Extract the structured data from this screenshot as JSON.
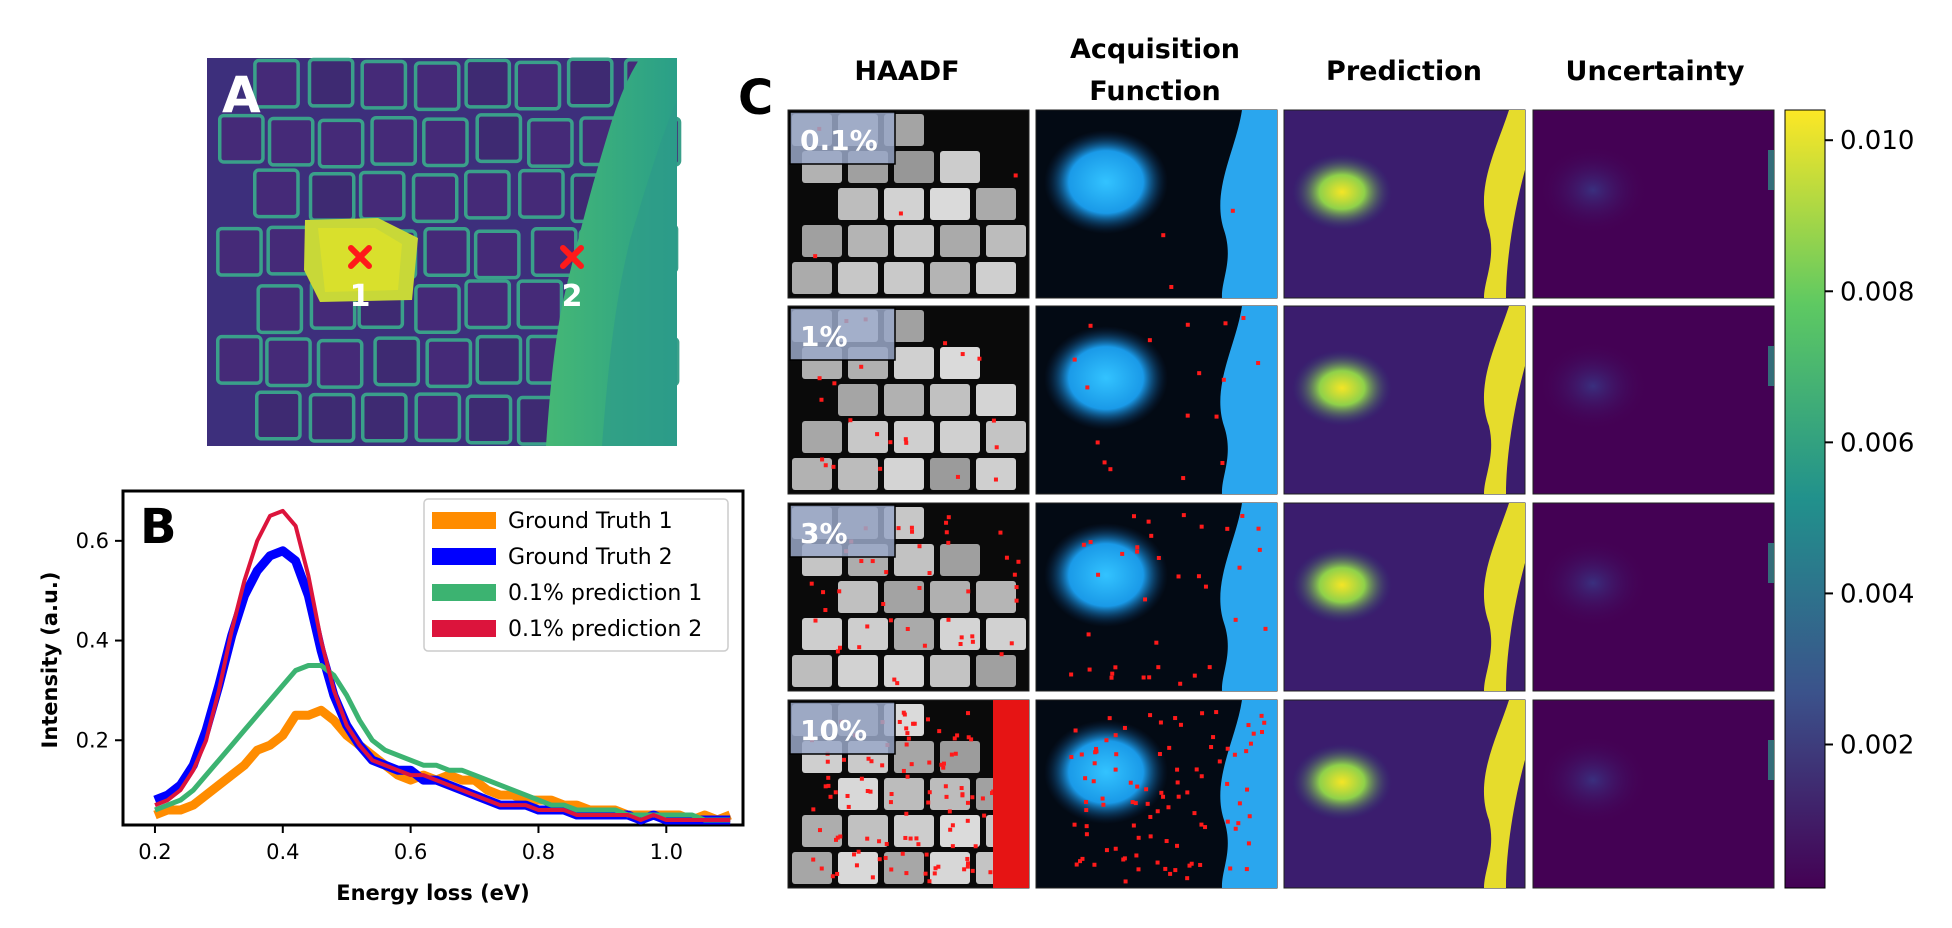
{
  "panels": {
    "a": {
      "letter": "A",
      "markers": [
        "1",
        "2"
      ]
    },
    "b": {
      "letter": "B"
    },
    "c": {
      "letter": "C"
    }
  },
  "grid": {
    "column_titles": [
      "HAADF",
      "Acquisition",
      "Function",
      "Prediction",
      "Uncertainty"
    ],
    "row_labels": [
      "0.1%",
      "1%",
      "3%",
      "10%"
    ]
  },
  "colorbar": {
    "ticks": [
      "0.010",
      "0.008",
      "0.006",
      "0.004",
      "0.002"
    ],
    "tick_values": [
      0.01,
      0.008,
      0.006,
      0.004,
      0.002
    ],
    "range": [
      0.0001,
      0.0104
    ],
    "colors": [
      "#440154",
      "#3b528b",
      "#21918c",
      "#5ec962",
      "#fde725"
    ]
  },
  "chart_data": {
    "type": "line",
    "xlabel": "Energy loss (eV)",
    "ylabel": "Intensity (a.u.)",
    "xlim": [
      0.15,
      1.12
    ],
    "ylim": [
      0.03,
      0.7
    ],
    "xticks": [
      0.2,
      0.4,
      0.6,
      0.8,
      1.0
    ],
    "xtick_labels": [
      "0.2",
      "0.4",
      "0.6",
      "0.8",
      "1.0"
    ],
    "yticks": [
      0.2,
      0.4,
      0.6
    ],
    "ytick_labels": [
      "0.2",
      "0.4",
      "0.6"
    ],
    "legend_position": "top-right",
    "grid": false,
    "series": [
      {
        "name": "Ground Truth 1",
        "color": "#ff8c00",
        "x": [
          0.2,
          0.22,
          0.24,
          0.26,
          0.28,
          0.3,
          0.32,
          0.34,
          0.36,
          0.38,
          0.4,
          0.42,
          0.44,
          0.46,
          0.48,
          0.5,
          0.52,
          0.54,
          0.56,
          0.58,
          0.6,
          0.62,
          0.64,
          0.66,
          0.68,
          0.7,
          0.72,
          0.74,
          0.76,
          0.78,
          0.8,
          0.82,
          0.84,
          0.86,
          0.88,
          0.9,
          0.92,
          0.94,
          0.96,
          0.98,
          1.0,
          1.02,
          1.04,
          1.06,
          1.08,
          1.1
        ],
        "y": [
          0.05,
          0.06,
          0.06,
          0.07,
          0.09,
          0.11,
          0.13,
          0.15,
          0.18,
          0.19,
          0.21,
          0.25,
          0.25,
          0.26,
          0.24,
          0.21,
          0.19,
          0.17,
          0.15,
          0.13,
          0.12,
          0.13,
          0.12,
          0.13,
          0.12,
          0.12,
          0.1,
          0.09,
          0.09,
          0.08,
          0.08,
          0.08,
          0.07,
          0.07,
          0.06,
          0.06,
          0.06,
          0.05,
          0.05,
          0.05,
          0.05,
          0.05,
          0.04,
          0.05,
          0.04,
          0.05
        ]
      },
      {
        "name": "Ground Truth 2",
        "color": "#0000ff",
        "x": [
          0.2,
          0.22,
          0.24,
          0.26,
          0.28,
          0.3,
          0.32,
          0.34,
          0.36,
          0.38,
          0.4,
          0.42,
          0.44,
          0.46,
          0.48,
          0.5,
          0.52,
          0.54,
          0.56,
          0.58,
          0.6,
          0.62,
          0.64,
          0.66,
          0.68,
          0.7,
          0.72,
          0.74,
          0.76,
          0.78,
          0.8,
          0.82,
          0.84,
          0.86,
          0.88,
          0.9,
          0.92,
          0.94,
          0.96,
          0.98,
          1.0,
          1.02,
          1.04,
          1.06,
          1.08,
          1.1
        ],
        "y": [
          0.08,
          0.09,
          0.11,
          0.15,
          0.22,
          0.31,
          0.41,
          0.49,
          0.54,
          0.57,
          0.58,
          0.56,
          0.49,
          0.38,
          0.29,
          0.23,
          0.19,
          0.16,
          0.15,
          0.14,
          0.14,
          0.12,
          0.12,
          0.11,
          0.1,
          0.09,
          0.08,
          0.07,
          0.07,
          0.07,
          0.06,
          0.06,
          0.06,
          0.05,
          0.05,
          0.05,
          0.05,
          0.05,
          0.04,
          0.05,
          0.04,
          0.04,
          0.04,
          0.04,
          0.04,
          0.04
        ]
      },
      {
        "name": "0.1% prediction 1",
        "color": "#3cb371",
        "x": [
          0.2,
          0.22,
          0.24,
          0.26,
          0.28,
          0.3,
          0.32,
          0.34,
          0.36,
          0.38,
          0.4,
          0.42,
          0.44,
          0.46,
          0.48,
          0.5,
          0.52,
          0.54,
          0.56,
          0.58,
          0.6,
          0.62,
          0.64,
          0.66,
          0.68,
          0.7,
          0.72,
          0.74,
          0.76,
          0.78,
          0.8,
          0.82,
          0.84,
          0.86,
          0.88,
          0.9,
          0.92,
          0.94,
          0.96,
          0.98,
          1.0,
          1.02,
          1.04,
          1.06,
          1.08,
          1.1
        ],
        "y": [
          0.06,
          0.07,
          0.08,
          0.1,
          0.13,
          0.16,
          0.19,
          0.22,
          0.25,
          0.28,
          0.31,
          0.34,
          0.35,
          0.35,
          0.33,
          0.29,
          0.24,
          0.2,
          0.18,
          0.17,
          0.16,
          0.15,
          0.15,
          0.14,
          0.14,
          0.13,
          0.12,
          0.11,
          0.1,
          0.09,
          0.08,
          0.07,
          0.07,
          0.06,
          0.06,
          0.06,
          0.06,
          0.05,
          0.05,
          0.05,
          0.05,
          0.05,
          0.05,
          0.04,
          0.04,
          0.04
        ]
      },
      {
        "name": "0.1% prediction 2",
        "color": "#dc143c",
        "x": [
          0.2,
          0.22,
          0.24,
          0.26,
          0.28,
          0.3,
          0.32,
          0.34,
          0.36,
          0.38,
          0.4,
          0.42,
          0.44,
          0.46,
          0.48,
          0.5,
          0.52,
          0.54,
          0.56,
          0.58,
          0.6,
          0.62,
          0.64,
          0.66,
          0.68,
          0.7,
          0.72,
          0.74,
          0.76,
          0.78,
          0.8,
          0.82,
          0.84,
          0.86,
          0.88,
          0.9,
          0.92,
          0.94,
          0.96,
          0.98,
          1.0,
          1.02,
          1.04,
          1.06,
          1.08,
          1.1
        ],
        "y": [
          0.07,
          0.08,
          0.1,
          0.14,
          0.2,
          0.3,
          0.42,
          0.52,
          0.6,
          0.65,
          0.66,
          0.63,
          0.53,
          0.4,
          0.3,
          0.23,
          0.19,
          0.16,
          0.15,
          0.14,
          0.13,
          0.13,
          0.12,
          0.11,
          0.1,
          0.09,
          0.08,
          0.07,
          0.07,
          0.07,
          0.06,
          0.06,
          0.06,
          0.05,
          0.05,
          0.05,
          0.05,
          0.05,
          0.04,
          0.05,
          0.04,
          0.04,
          0.04,
          0.04,
          0.04,
          0.04
        ]
      }
    ]
  }
}
